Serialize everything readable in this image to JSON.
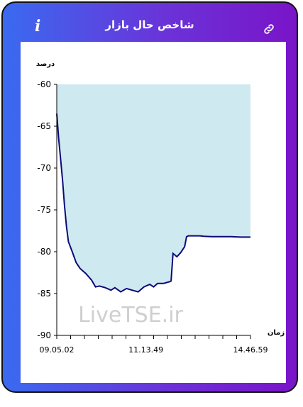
{
  "header": {
    "title": "شاخص حال بازار",
    "info_glyph": "i",
    "info_icon": "info-icon",
    "link_icon": "link-icon",
    "gradient_colors": [
      "#3a6af0",
      "#7a14c8"
    ]
  },
  "watermark": "LiveTSE.ir",
  "chart_data": {
    "type": "area",
    "ylabel": "درصد",
    "xlabel": "زمان",
    "ylim": [
      -90,
      -60
    ],
    "y_ticks": [
      -60,
      -65,
      -70,
      -75,
      -80,
      -85,
      -90
    ],
    "y_tick_labels": [
      "-60",
      "-65",
      "-70",
      "-75",
      "-80",
      "-85",
      "-90"
    ],
    "x_tick_labels": [
      "09.05.02",
      "11.13.49",
      "14.46.59"
    ],
    "x": [
      0,
      0.01,
      0.02,
      0.03,
      0.04,
      0.05,
      0.06,
      0.08,
      0.1,
      0.12,
      0.15,
      0.18,
      0.2,
      0.22,
      0.25,
      0.28,
      0.3,
      0.33,
      0.36,
      0.39,
      0.42,
      0.45,
      0.48,
      0.5,
      0.52,
      0.55,
      0.58,
      0.59,
      0.6,
      0.62,
      0.64,
      0.66,
      0.67,
      0.68,
      0.7,
      0.72,
      0.74,
      0.76,
      0.8,
      0.85,
      0.9,
      0.95,
      1.0
    ],
    "values": [
      -63.5,
      -66.5,
      -69.0,
      -71.5,
      -74.5,
      -77.0,
      -78.8,
      -80.0,
      -81.3,
      -82.0,
      -82.6,
      -83.4,
      -84.2,
      -84.1,
      -84.3,
      -84.6,
      -84.3,
      -84.8,
      -84.4,
      -84.6,
      -84.8,
      -84.2,
      -83.9,
      -84.2,
      -83.8,
      -83.8,
      -83.6,
      -83.5,
      -80.2,
      -80.6,
      -80.1,
      -79.4,
      -78.2,
      -78.1,
      -78.1,
      -78.1,
      -78.1,
      -78.15,
      -78.2,
      -78.2,
      -78.2,
      -78.25,
      -78.25
    ],
    "fill_color": "#cfe9f0",
    "line_color": "#0a0a7a",
    "grid": false
  }
}
